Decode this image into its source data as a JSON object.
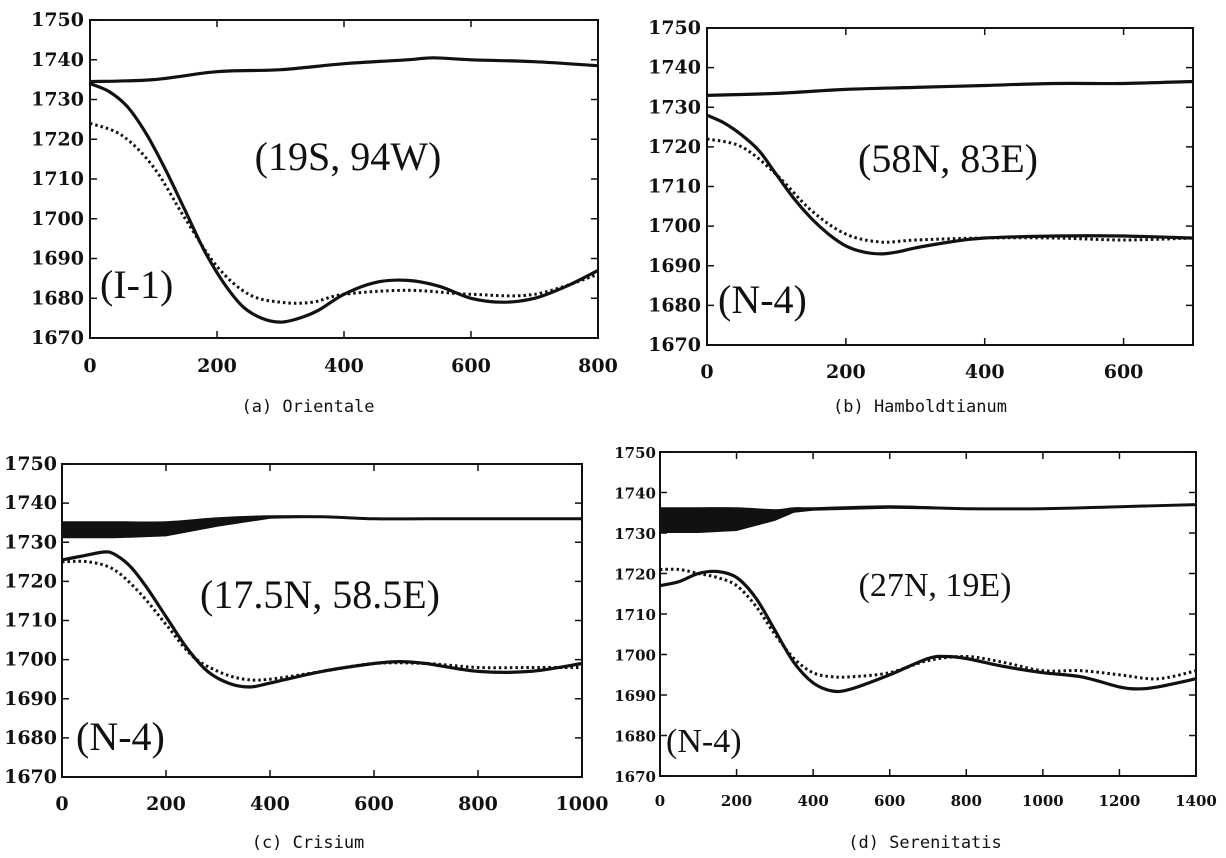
{
  "chart_data": [
    {
      "type": "line",
      "caption": "(a) Orientale",
      "coordinates": "(19S, 94W)",
      "region_tag": "(I-1)",
      "x_ticks": [
        0,
        200,
        400,
        600,
        800
      ],
      "y_ticks": [
        1670,
        1680,
        1690,
        1700,
        1710,
        1720,
        1730,
        1740,
        1750
      ],
      "xlim": [
        0,
        800
      ],
      "ylim": [
        1670,
        1750
      ],
      "series": [
        {
          "style": "solid",
          "x": [
            0,
            100,
            200,
            300,
            400,
            500,
            540,
            600,
            700,
            800
          ],
          "y": [
            1734.5,
            1735,
            1737,
            1737.5,
            1739,
            1740,
            1740.5,
            1740,
            1739.5,
            1738.5
          ]
        },
        {
          "style": "solid",
          "x": [
            0,
            30,
            60,
            90,
            120,
            150,
            180,
            210,
            240,
            270,
            300,
            330,
            360,
            400,
            450,
            500,
            550,
            600,
            650,
            700,
            750,
            800
          ],
          "y": [
            1734,
            1732,
            1728,
            1721,
            1712,
            1702,
            1692,
            1684,
            1678,
            1675,
            1674,
            1675,
            1677,
            1681,
            1684,
            1684.5,
            1683,
            1680,
            1679,
            1680,
            1683,
            1687
          ]
        },
        {
          "style": "dotted",
          "x": [
            0,
            50,
            100,
            150,
            200,
            250,
            300,
            350,
            400,
            500,
            600,
            700,
            800
          ],
          "y": [
            1724,
            1721,
            1713,
            1700,
            1688,
            1681,
            1679,
            1679,
            1681,
            1682,
            1681,
            1681,
            1686
          ]
        }
      ]
    },
    {
      "type": "line",
      "caption": "(b) Hamboldtianum",
      "coordinates": "(58N, 83E)",
      "region_tag": "(N-4)",
      "x_ticks": [
        0,
        200,
        400,
        600
      ],
      "y_ticks": [
        1670,
        1680,
        1690,
        1700,
        1710,
        1720,
        1730,
        1740,
        1750
      ],
      "xlim": [
        0,
        700
      ],
      "ylim": [
        1670,
        1750
      ],
      "series": [
        {
          "style": "solid",
          "x": [
            0,
            100,
            200,
            300,
            400,
            500,
            600,
            700
          ],
          "y": [
            1733,
            1733.5,
            1734.5,
            1735,
            1735.5,
            1736,
            1736,
            1736.5
          ]
        },
        {
          "style": "solid",
          "x": [
            0,
            25,
            50,
            75,
            100,
            125,
            150,
            175,
            200,
            225,
            250,
            275,
            300,
            350,
            400,
            500,
            600,
            700
          ],
          "y": [
            1728,
            1726,
            1723,
            1719,
            1713,
            1707,
            1702,
            1698,
            1695,
            1693.5,
            1693,
            1693.5,
            1694.5,
            1696,
            1697,
            1697.5,
            1697.5,
            1697
          ]
        },
        {
          "style": "dotted",
          "x": [
            0,
            50,
            100,
            150,
            200,
            250,
            300,
            400,
            500,
            600,
            700
          ],
          "y": [
            1722,
            1720,
            1713,
            1704,
            1698,
            1696,
            1696.5,
            1697,
            1697,
            1696.5,
            1697
          ]
        }
      ]
    },
    {
      "type": "line",
      "caption": "(c) Crisium",
      "coordinates": "(17.5N, 58.5E)",
      "region_tag": "(N-4)",
      "x_ticks": [
        0,
        200,
        400,
        600,
        800,
        1000
      ],
      "y_ticks": [
        1670,
        1680,
        1690,
        1700,
        1710,
        1720,
        1730,
        1740,
        1750
      ],
      "xlim": [
        0,
        1000
      ],
      "ylim": [
        1670,
        1750
      ],
      "series": [
        {
          "style": "band",
          "x": [
            0,
            100,
            200,
            300,
            400,
            500,
            600,
            700,
            800,
            900,
            1000
          ],
          "y_upper": [
            1735,
            1735,
            1735,
            1736,
            1736.5,
            1736.5,
            1736,
            1736,
            1736,
            1736,
            1736
          ],
          "y_lower": [
            1731,
            1731,
            1731.5,
            1734,
            1736,
            1736.3,
            1735.7,
            1735.7,
            1735.7,
            1735.7,
            1735.7
          ]
        },
        {
          "style": "solid",
          "x": [
            0,
            40,
            80,
            100,
            130,
            160,
            200,
            240,
            280,
            320,
            360,
            400,
            500,
            600,
            650,
            700,
            800,
            900,
            1000
          ],
          "y": [
            1725.5,
            1726.5,
            1727.5,
            1727,
            1724,
            1719,
            1711,
            1703,
            1697,
            1694,
            1693,
            1694,
            1697,
            1699,
            1699.5,
            1699,
            1697,
            1697,
            1699
          ]
        },
        {
          "style": "dotted",
          "x": [
            0,
            50,
            100,
            150,
            200,
            250,
            300,
            350,
            400,
            500,
            600,
            700,
            800,
            900,
            1000
          ],
          "y": [
            1725,
            1725,
            1723,
            1717,
            1709,
            1701,
            1697,
            1695,
            1695,
            1697,
            1699,
            1699,
            1698,
            1698,
            1698
          ]
        }
      ]
    },
    {
      "type": "line",
      "caption": "(d) Serenitatis",
      "coordinates": "(27N, 19E)",
      "region_tag": "(N-4)",
      "x_ticks": [
        0,
        200,
        400,
        600,
        800,
        1000,
        1200,
        1400
      ],
      "y_ticks": [
        1670,
        1680,
        1690,
        1700,
        1710,
        1720,
        1730,
        1740,
        1750
      ],
      "xlim": [
        0,
        1400
      ],
      "ylim": [
        1670,
        1750
      ],
      "series": [
        {
          "style": "band",
          "x": [
            0,
            100,
            200,
            300,
            350,
            400,
            600,
            800,
            1000,
            1200,
            1400
          ],
          "y_upper": [
            1736,
            1736,
            1736,
            1735.5,
            1736,
            1736,
            1736.5,
            1736,
            1736,
            1736.5,
            1737
          ],
          "y_lower": [
            1730,
            1730,
            1730.5,
            1733,
            1735,
            1735.5,
            1736,
            1735.7,
            1735.7,
            1736.2,
            1736.8
          ]
        },
        {
          "style": "solid",
          "x": [
            0,
            50,
            100,
            150,
            200,
            250,
            300,
            350,
            400,
            450,
            500,
            600,
            700,
            750,
            800,
            900,
            1000,
            1100,
            1200,
            1250,
            1300,
            1400
          ],
          "y": [
            1717,
            1718,
            1720,
            1720.5,
            1719,
            1714,
            1706,
            1698,
            1693,
            1691,
            1691.5,
            1695,
            1699,
            1699.5,
            1699,
            1697,
            1695.5,
            1694.5,
            1692,
            1691.5,
            1692,
            1694
          ]
        },
        {
          "style": "dotted",
          "x": [
            0,
            50,
            100,
            150,
            200,
            250,
            300,
            350,
            400,
            450,
            500,
            600,
            700,
            800,
            900,
            1000,
            1100,
            1200,
            1300,
            1400
          ],
          "y": [
            1721,
            1721,
            1720,
            1719,
            1717,
            1712,
            1705,
            1699,
            1695.5,
            1694.5,
            1694.5,
            1695.5,
            1698.5,
            1699.5,
            1698,
            1696,
            1696,
            1695,
            1694,
            1696
          ]
        }
      ]
    }
  ]
}
